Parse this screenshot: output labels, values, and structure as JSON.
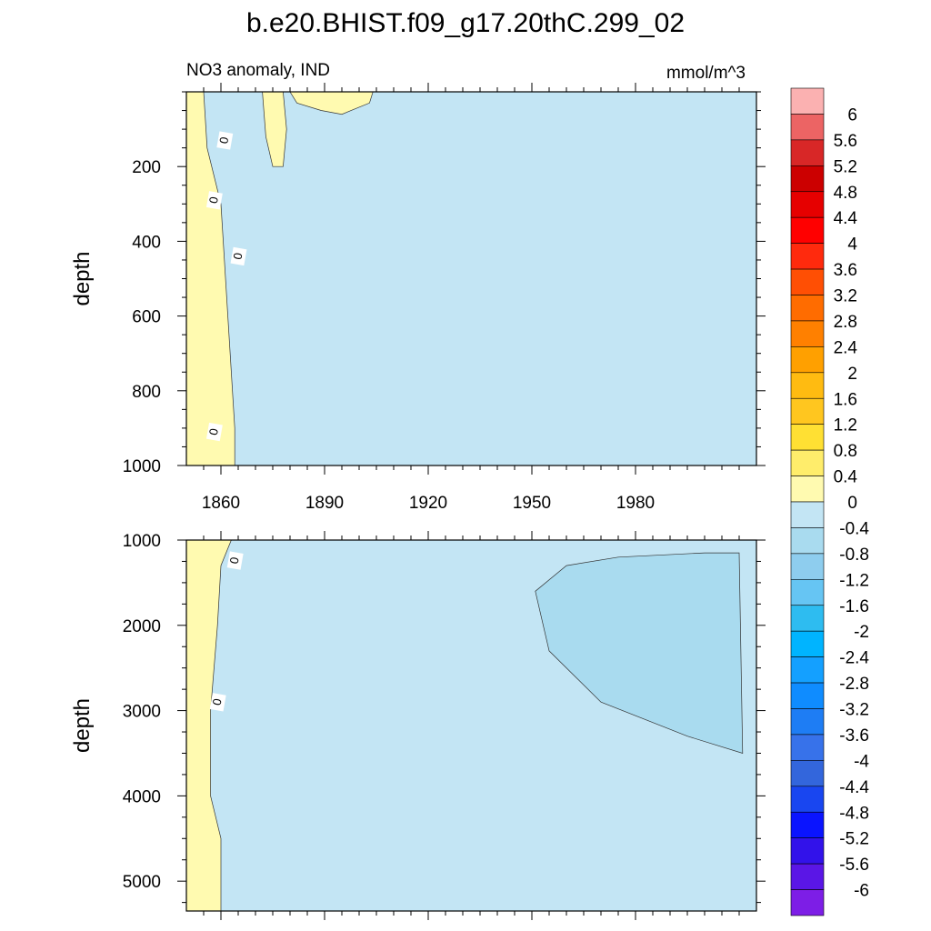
{
  "figure": {
    "title": "b.e20.BHIST.f09_g17.20thC.299_02",
    "left_subtitle": "NO3 anomaly, IND",
    "right_subtitle": "mmol/m^3"
  },
  "colorbar": {
    "labels": [
      "6",
      "5.6",
      "5.2",
      "4.8",
      "4.4",
      "4",
      "3.6",
      "3.2",
      "2.8",
      "2.4",
      "2",
      "1.6",
      "1.2",
      "0.8",
      "0.4",
      "0",
      "-0.4",
      "-0.8",
      "-1.2",
      "-1.6",
      "-2",
      "-2.4",
      "-2.8",
      "-3.2",
      "-3.6",
      "-4",
      "-4.4",
      "-4.8",
      "-5.2",
      "-5.6",
      "-6"
    ],
    "colors": [
      "#fbb1b1",
      "#ec6464",
      "#d82727",
      "#cc0000",
      "#e60000",
      "#ff0000",
      "#ff2a0d",
      "#ff4f04",
      "#ff6c00",
      "#ff8000",
      "#ffa000",
      "#ffbb11",
      "#ffc61f",
      "#ffe033",
      "#ffed6b",
      "#fffab0",
      "#c3e5f4",
      "#a9dbef",
      "#8ecdee",
      "#66c5f3",
      "#2ebcf0",
      "#00b4ff",
      "#14a0ff",
      "#0f8cff",
      "#1e7df4",
      "#3772ea",
      "#3366dc",
      "#1946f0",
      "#0a14ff",
      "#3212ea",
      "#5a16e6",
      "#7d1ee6"
    ]
  },
  "chart_data": [
    {
      "type": "heatmap",
      "panel": "upper",
      "title": "NO3 anomaly, IND",
      "units": "mmol/m^3",
      "xlabel": "",
      "ylabel": "depth",
      "x_range": [
        1850,
        2015
      ],
      "y_range": [
        0,
        1000
      ],
      "y_inverted": true,
      "x_ticks": [
        1860,
        1890,
        1920,
        1950,
        1980
      ],
      "x_tick_labels": [
        "1860",
        "1890",
        "1920",
        "1950",
        "1980"
      ],
      "y_ticks": [
        200,
        400,
        600,
        800,
        1000
      ],
      "y_tick_labels": [
        "200",
        "400",
        "600",
        "800",
        "1000"
      ],
      "background_level": "-0.4 to 0",
      "contour_labels": [
        {
          "text": "0",
          "x": 1861,
          "y": 130
        },
        {
          "text": "0",
          "x": 1858,
          "y": 290
        },
        {
          "text": "0",
          "x": 1865,
          "y": 440
        },
        {
          "text": "0",
          "x": 1858,
          "y": 910
        }
      ],
      "regions": [
        {
          "level": "0 to 0.4",
          "shape": "band",
          "description": "Positive anomaly strip along the left edge spanning 1850-1864, full depth 0-1000",
          "poly": [
            [
              1850,
              0
            ],
            [
              1855,
              0
            ],
            [
              1856,
              150
            ],
            [
              1860,
              300
            ],
            [
              1862,
              600
            ],
            [
              1864,
              900
            ],
            [
              1864,
              1000
            ],
            [
              1850,
              1000
            ]
          ]
        },
        {
          "level": "0 to 0.4",
          "description": "Near-surface positive streak around 1870-1880",
          "poly": [
            [
              1872,
              0
            ],
            [
              1878,
              0
            ],
            [
              1879,
              100
            ],
            [
              1878,
              200
            ],
            [
              1875,
              200
            ],
            [
              1873,
              120
            ]
          ]
        },
        {
          "level": "0 to 0.4",
          "description": "Near-surface positive patches 1880-1905",
          "poly": [
            [
              1880,
              0
            ],
            [
              1904,
              0
            ],
            [
              1903,
              30
            ],
            [
              1895,
              60
            ],
            [
              1889,
              50
            ],
            [
              1882,
              30
            ]
          ]
        }
      ]
    },
    {
      "type": "heatmap",
      "panel": "lower",
      "xlabel": "",
      "ylabel": "depth",
      "x_range": [
        1850,
        2015
      ],
      "y_range": [
        1000,
        5350
      ],
      "y_inverted": true,
      "x_ticks": [
        1860,
        1890,
        1920,
        1950,
        1980
      ],
      "y_ticks": [
        1000,
        2000,
        3000,
        4000,
        5000
      ],
      "y_tick_labels": [
        "1000",
        "2000",
        "3000",
        "4000",
        "5000"
      ],
      "background_level": "-0.4 to 0",
      "contour_labels": [
        {
          "text": "0",
          "x": 1864,
          "y": 1240
        },
        {
          "text": "0",
          "x": 1859,
          "y": 2900
        }
      ],
      "regions": [
        {
          "level": "0 to 0.4",
          "description": "Positive anomaly strip along the left edge 1850-1860, full depth",
          "poly": [
            [
              1850,
              1000
            ],
            [
              1863,
              1000
            ],
            [
              1860,
              1300
            ],
            [
              1859,
              2000
            ],
            [
              1857,
              3000
            ],
            [
              1857,
              4000
            ],
            [
              1860,
              4500
            ],
            [
              1860,
              5350
            ],
            [
              1850,
              5350
            ]
          ]
        },
        {
          "level": "-0.8 to -0.4",
          "description": "Negative anomaly wedge late in the record, deep water",
          "poly": [
            [
              1951,
              1600
            ],
            [
              1960,
              1300
            ],
            [
              1975,
              1200
            ],
            [
              2000,
              1150
            ],
            [
              2010,
              1150
            ],
            [
              2011,
              3500
            ],
            [
              1995,
              3300
            ],
            [
              1970,
              2900
            ],
            [
              1955,
              2300
            ]
          ]
        }
      ]
    }
  ]
}
